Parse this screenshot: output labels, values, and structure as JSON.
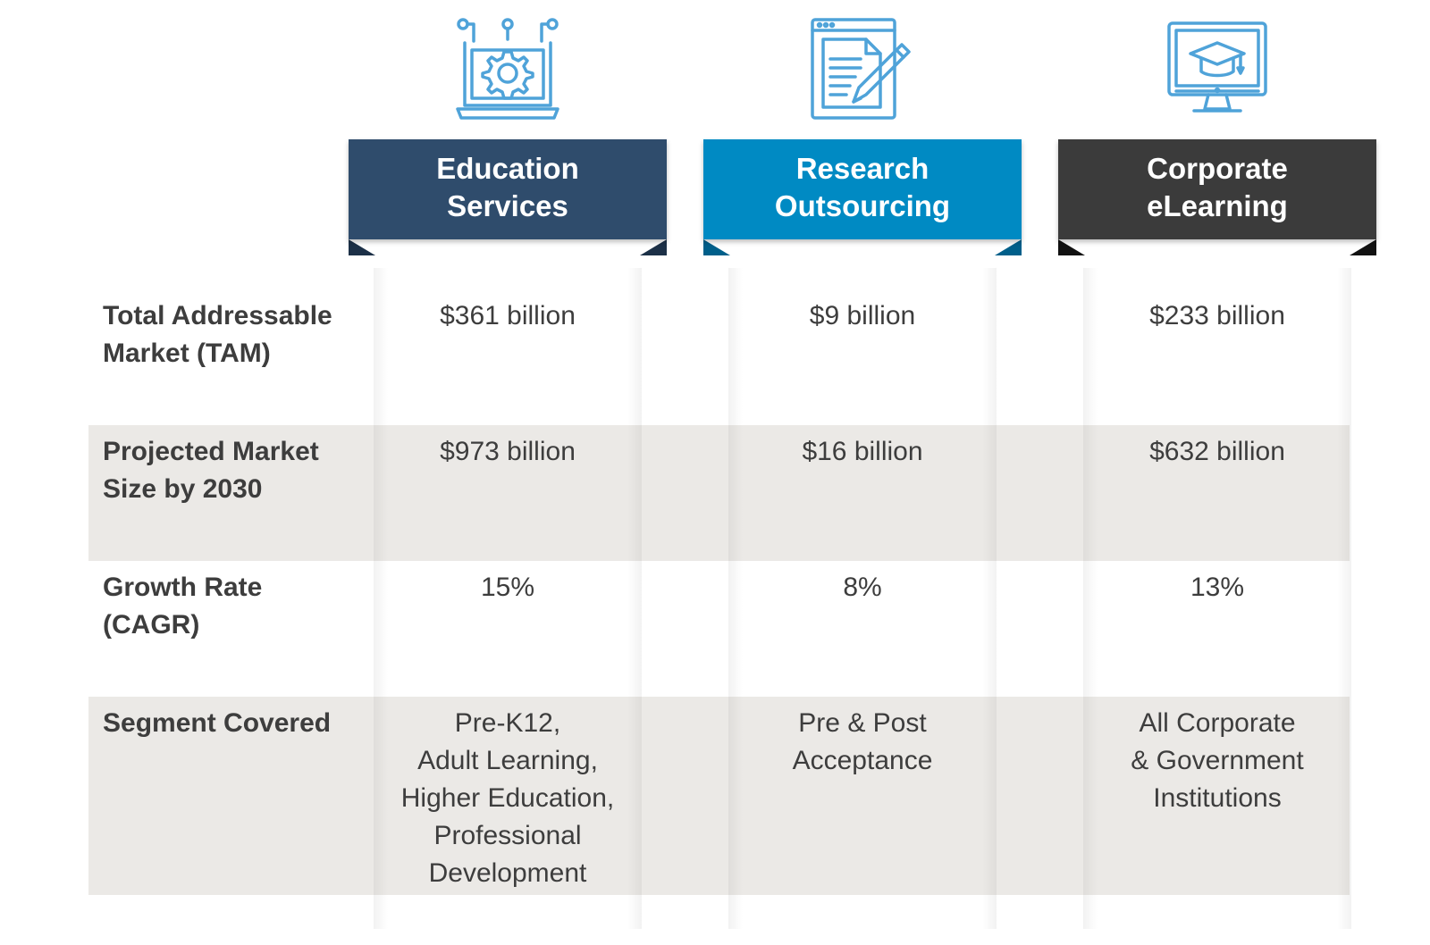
{
  "colors": {
    "education": "#2f4c6c",
    "education_dark": "#1c3047",
    "research": "#008ac3",
    "research_dark": "#005f8a",
    "corporate": "#3b3b3b",
    "corporate_dark": "#111111",
    "icon_stroke": "#4fa3d9",
    "band": "#ebe9e6"
  },
  "columns": [
    {
      "title": "Education\nServices",
      "icon": "laptop-gear-icon"
    },
    {
      "title": "Research\nOutsourcing",
      "icon": "document-pencil-icon"
    },
    {
      "title": "Corporate\neLearning",
      "icon": "monitor-graduation-cap-icon"
    }
  ],
  "rows": [
    {
      "label": "Total Addressable\nMarket (TAM)",
      "values": [
        "$361 billion",
        "$9 billion",
        "$233 billion"
      ]
    },
    {
      "label": "Projected Market\nSize by 2030",
      "values": [
        "$973 billion",
        "$16 billion",
        "$632 billion"
      ]
    },
    {
      "label": "Growth Rate\n(CAGR)",
      "values": [
        "15%",
        "8%",
        "13%"
      ]
    },
    {
      "label": "Segment Covered",
      "values": [
        "Pre-K12,\nAdult Learning,\nHigher Education,\nProfessional\nDevelopment",
        "Pre & Post\nAcceptance",
        "All Corporate\n& Government\nInstitutions"
      ]
    }
  ]
}
